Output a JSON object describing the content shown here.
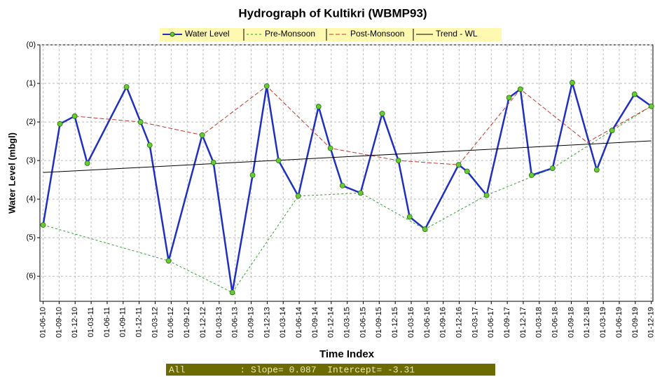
{
  "chart_data": {
    "type": "line",
    "title": "Hydrograph of Kultikri (WBMP93)",
    "xlabel": "Time Index",
    "ylabel": "Water Level (mbgl)",
    "annotation": "All          : Slope= 0.087  Intercept= -3.31",
    "categories": [
      "01-06-10",
      "01-09-10",
      "01-12-10",
      "01-03-11",
      "01-06-11",
      "01-09-11",
      "01-12-11",
      "01-03-12",
      "01-06-12",
      "01-09-12",
      "01-12-12",
      "01-03-13",
      "01-06-13",
      "01-09-13",
      "01-12-13",
      "01-03-14",
      "01-06-14",
      "01-09-14",
      "01-12-14",
      "01-03-15",
      "01-06-15",
      "01-09-15",
      "01-12-15",
      "01-03-16",
      "01-06-16",
      "01-09-16",
      "01-12-16",
      "01-03-17",
      "01-06-17",
      "01-09-17",
      "01-12-17",
      "01-03-18",
      "01-06-18",
      "01-09-18",
      "01-12-18",
      "01-03-19",
      "01-06-19",
      "01-09-19",
      "01-12-19"
    ],
    "xlim": [
      -0.2,
      38.1
    ],
    "ylim": [
      0,
      6.65
    ],
    "y_inverted": true,
    "grid": true,
    "yticks": [
      {
        "value": 0,
        "label": "(0)"
      },
      {
        "value": 1,
        "label": "(1)"
      },
      {
        "value": 2,
        "label": "(2)"
      },
      {
        "value": 3,
        "label": "(3)"
      },
      {
        "value": 4,
        "label": "(4)"
      },
      {
        "value": 5,
        "label": "(5)"
      },
      {
        "value": 6,
        "label": "(6)"
      }
    ],
    "series": [
      {
        "name": "Water Level",
        "color": "#1f2fbf",
        "style": "solid",
        "markers": true,
        "x": [
          0,
          1.05,
          1.97,
          2.76,
          5.21,
          6.09,
          6.66,
          7.84,
          9.94,
          10.64,
          11.82,
          13.09,
          13.97,
          14.71,
          15.94,
          17.21,
          17.95,
          18.7,
          19.83,
          21.19,
          22.2,
          22.9,
          23.86,
          25.96,
          26.49,
          27.71,
          29.11,
          29.82,
          30.52,
          31.83,
          33.06,
          34.59,
          35.55,
          36.95,
          38
        ],
        "values": [
          4.67,
          2.05,
          1.85,
          3.07,
          1.09,
          2.0,
          2.6,
          5.6,
          2.34,
          3.05,
          6.42,
          3.38,
          1.07,
          3.0,
          3.92,
          1.6,
          2.68,
          3.65,
          3.84,
          1.78,
          3.0,
          4.46,
          4.78,
          3.11,
          3.28,
          3.9,
          1.37,
          1.15,
          3.38,
          3.2,
          0.98,
          3.24,
          2.22,
          1.28,
          1.59
        ]
      },
      {
        "name": "Pre-Monsoon",
        "color": "#2e9e2e",
        "style": "dashed",
        "x": [
          0,
          7.84,
          11.82,
          15.94,
          19.83,
          23.86,
          27.71,
          31.83,
          35.55,
          38
        ],
        "values": [
          4.67,
          5.6,
          6.42,
          3.92,
          3.84,
          4.78,
          3.9,
          3.2,
          2.22,
          1.59
        ]
      },
      {
        "name": "Post-Monsoon",
        "color": "#c0392b",
        "style": "dashdot",
        "x": [
          1.97,
          6.09,
          9.94,
          13.97,
          17.95,
          22.2,
          25.96,
          29.82,
          34.0,
          38
        ],
        "values": [
          1.85,
          2.0,
          2.34,
          1.07,
          2.68,
          3.0,
          3.11,
          1.15,
          2.53,
          1.59
        ]
      },
      {
        "name": "Trend - WL",
        "color": "#000000",
        "style": "solid",
        "x": [
          0,
          38
        ],
        "values": [
          3.31,
          2.49
        ]
      }
    ]
  }
}
